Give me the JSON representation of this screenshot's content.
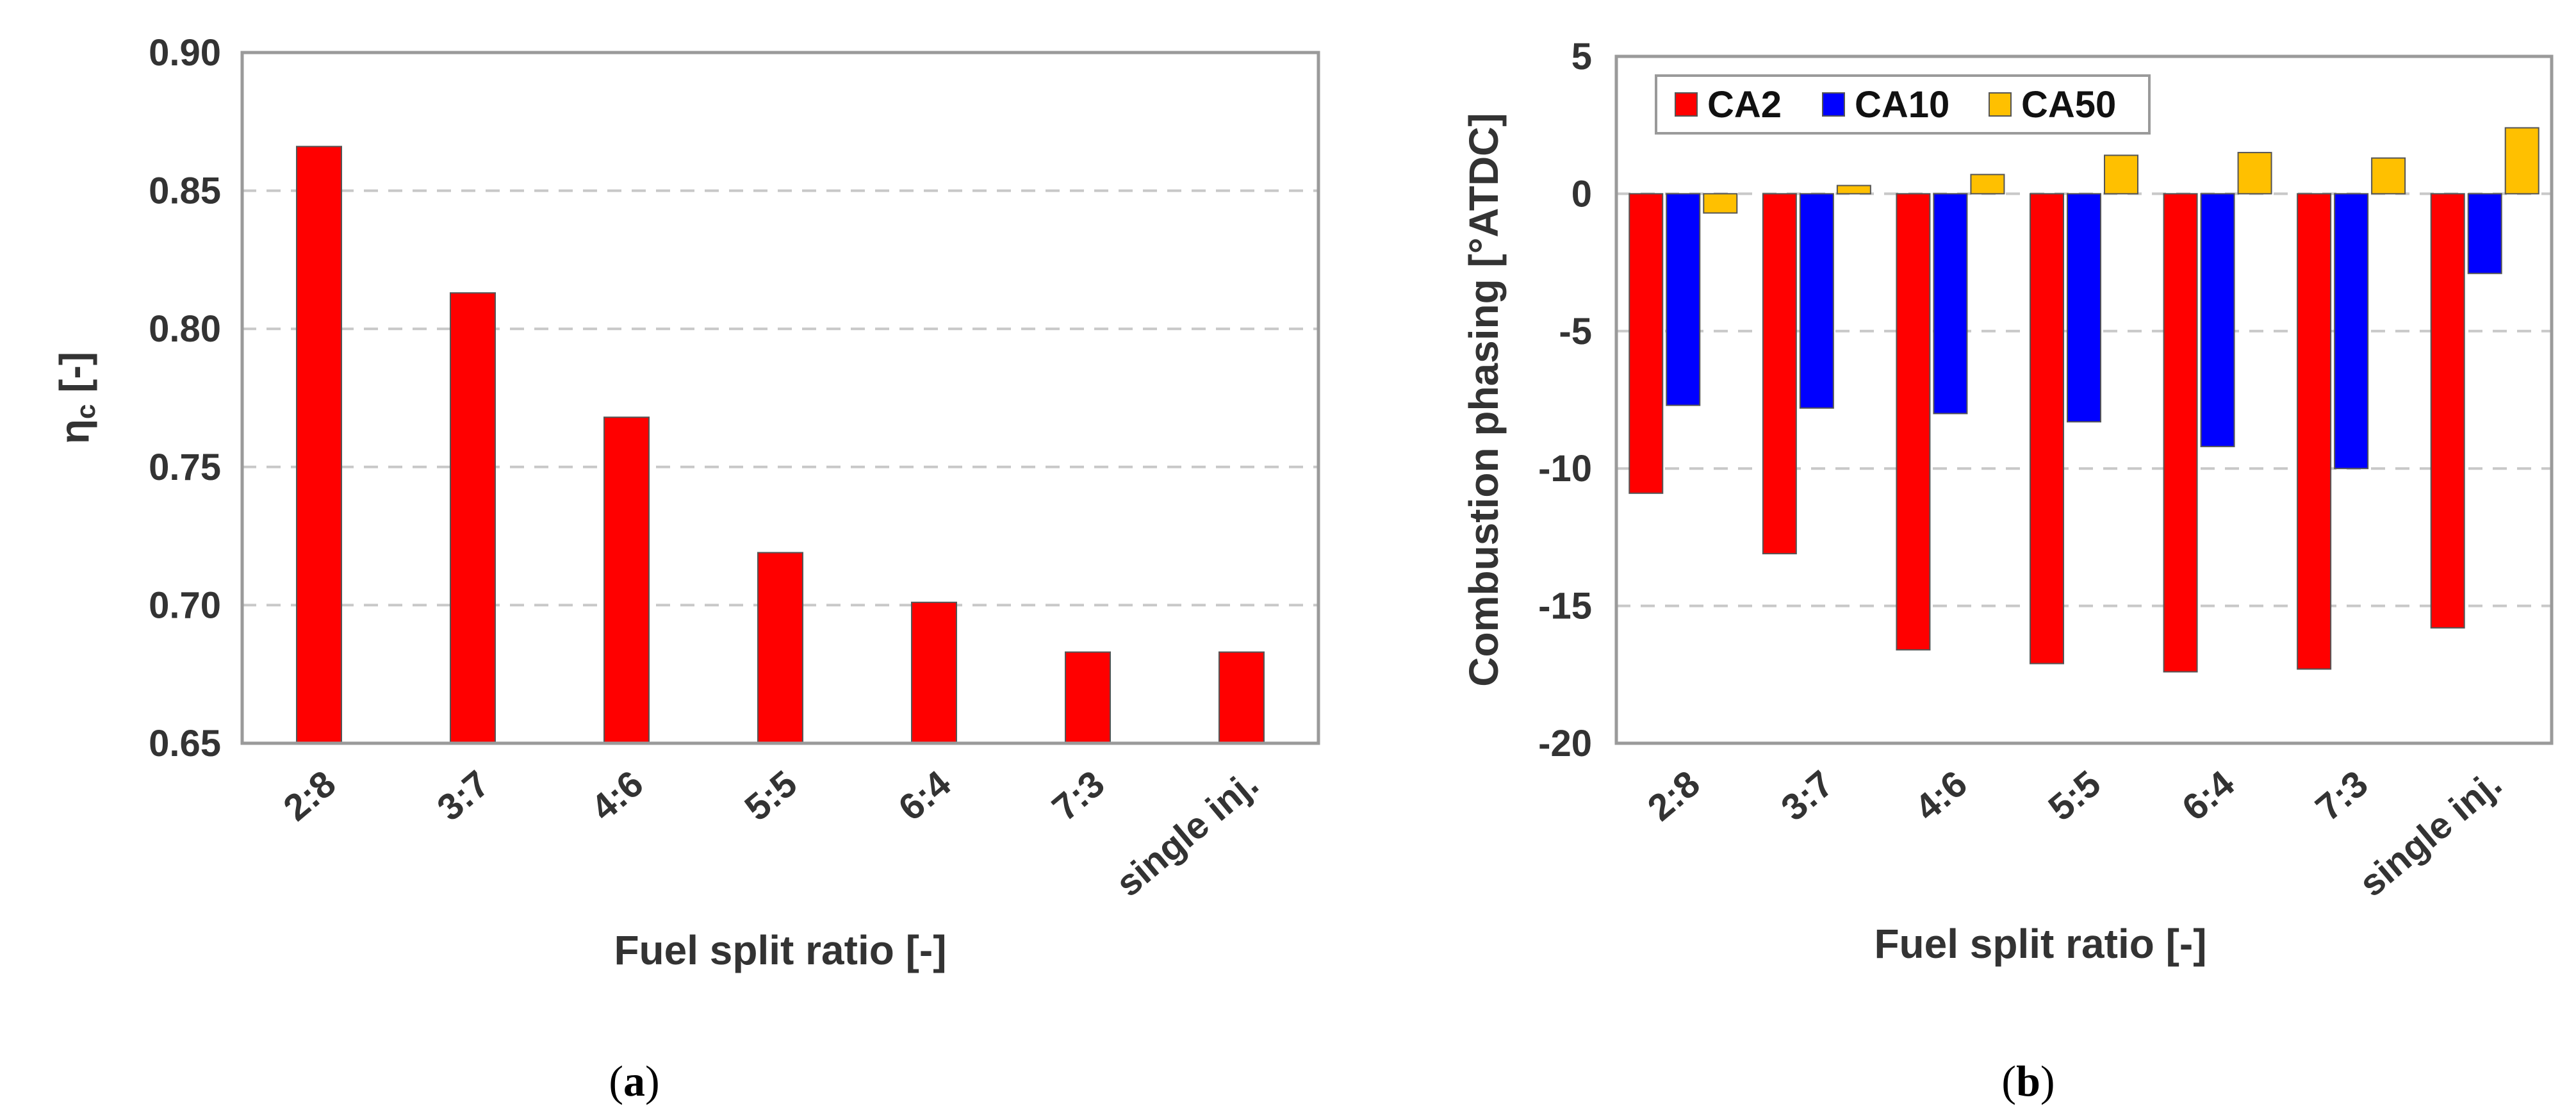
{
  "chart_data": [
    {
      "type": "bar",
      "panel_caption": "a",
      "categories": [
        "2:8",
        "3:7",
        "4:6",
        "5:5",
        "6:4",
        "7:3",
        "single inj."
      ],
      "series": [
        {
          "name": "ηc",
          "color": "#ff0000",
          "values": [
            0.866,
            0.813,
            0.768,
            0.719,
            0.701,
            0.683,
            0.683
          ]
        }
      ],
      "xlabel": "Fuel split ratio [-]",
      "ylabel_main": "η",
      "ylabel_sub": "c",
      "ylabel_suffix": " [-]",
      "ylim": [
        0.65,
        0.9
      ],
      "yticks": [
        0.65,
        0.7,
        0.75,
        0.8,
        0.85,
        0.9
      ],
      "ytick_labels": [
        "0.65",
        "0.70",
        "0.75",
        "0.80",
        "0.85",
        "0.90"
      ],
      "grid": "horizontal-dashed",
      "legend": "none"
    },
    {
      "type": "bar",
      "panel_caption": "b",
      "categories": [
        "2:8",
        "3:7",
        "4:6",
        "5:5",
        "6:4",
        "7:3",
        "single inj."
      ],
      "series": [
        {
          "name": "CA2",
          "color": "#ff0000",
          "values": [
            -10.9,
            -13.1,
            -16.6,
            -17.1,
            -17.4,
            -17.3,
            -15.8
          ]
        },
        {
          "name": "CA10",
          "color": "#0000ff",
          "values": [
            -7.7,
            -7.8,
            -8.0,
            -8.3,
            -9.2,
            -10.0,
            -2.9
          ]
        },
        {
          "name": "CA50",
          "color": "#ffc000",
          "values": [
            -0.7,
            0.3,
            0.7,
            1.4,
            1.5,
            1.3,
            2.4
          ]
        }
      ],
      "xlabel": "Fuel split ratio [-]",
      "ylabel": "Combustion phasing [°ATDC]",
      "ylim": [
        -20,
        5
      ],
      "yticks": [
        -20,
        -15,
        -10,
        -5,
        0,
        5
      ],
      "ytick_labels": [
        "-20",
        "-15",
        "-10",
        "-5",
        "0",
        "5"
      ],
      "grid": "horizontal-dashed",
      "legend": "top-left"
    }
  ]
}
